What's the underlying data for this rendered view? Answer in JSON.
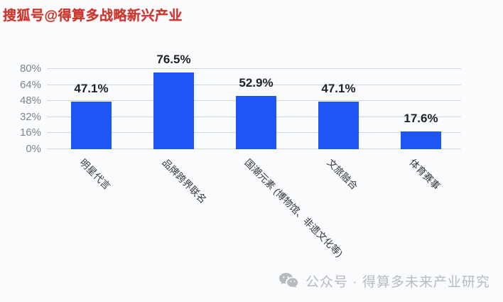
{
  "watermarks": {
    "top": "搜狐号@得算多战略新兴产业",
    "bottom": "公众号 · 得算多未来产业研究"
  },
  "colors": {
    "background": "#fafbfd",
    "bar": "#1e56f5",
    "grid": "#d3d6da",
    "y_tick_label": "#7e8489",
    "value_label": "#1d2126",
    "category_label": "#34383d",
    "top_watermark": "#cf352b",
    "bottom_watermark": "#b7bbc0"
  },
  "chart_data": {
    "type": "bar",
    "title": "",
    "xlabel": "",
    "ylabel": "",
    "categories": [
      "明星代言",
      "品牌跨界联名",
      "国潮元素 (博物馆、非遗文化等)",
      "文旅融合",
      "体育赛事"
    ],
    "values": [
      47.1,
      76.5,
      52.9,
      47.1,
      17.6
    ],
    "value_labels": [
      "47.1%",
      "76.5%",
      "52.9%",
      "47.1%",
      "17.6%"
    ],
    "y_ticks": [
      "0%",
      "16%",
      "32%",
      "48%",
      "64%",
      "80%"
    ],
    "y_tick_values": [
      0,
      16,
      32,
      48,
      64,
      80
    ],
    "ylim": [
      0,
      80
    ],
    "grid": "horizontal-only",
    "legend": "none",
    "bar_orientation": "vertical",
    "category_label_rotation_deg": 45
  }
}
